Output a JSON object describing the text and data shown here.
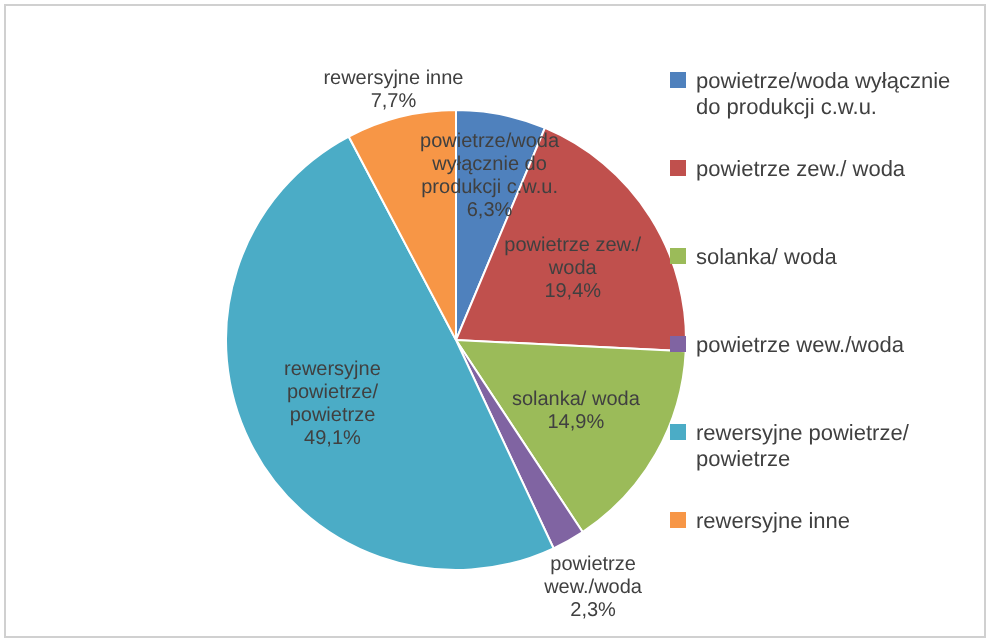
{
  "chart_data": {
    "type": "pie",
    "categories": [
      "powietrze/woda wyłącznie do produkcji c.w.u.",
      "powietrze zew./ woda",
      "solanka/ woda",
      "powietrze wew./woda",
      "rewersyjne powietrze/ powietrze",
      "rewersyjne inne"
    ],
    "values": [
      6.3,
      19.4,
      14.9,
      2.3,
      49.1,
      7.7
    ],
    "value_labels": [
      "6,3%",
      "19,4%",
      "14,9%",
      "2,3%",
      "49,1%",
      "7,7%"
    ],
    "colors": [
      "#4f81bd",
      "#c0504d",
      "#9bbb59",
      "#8064a2",
      "#4bacc6",
      "#f79646"
    ],
    "legend": "right"
  }
}
